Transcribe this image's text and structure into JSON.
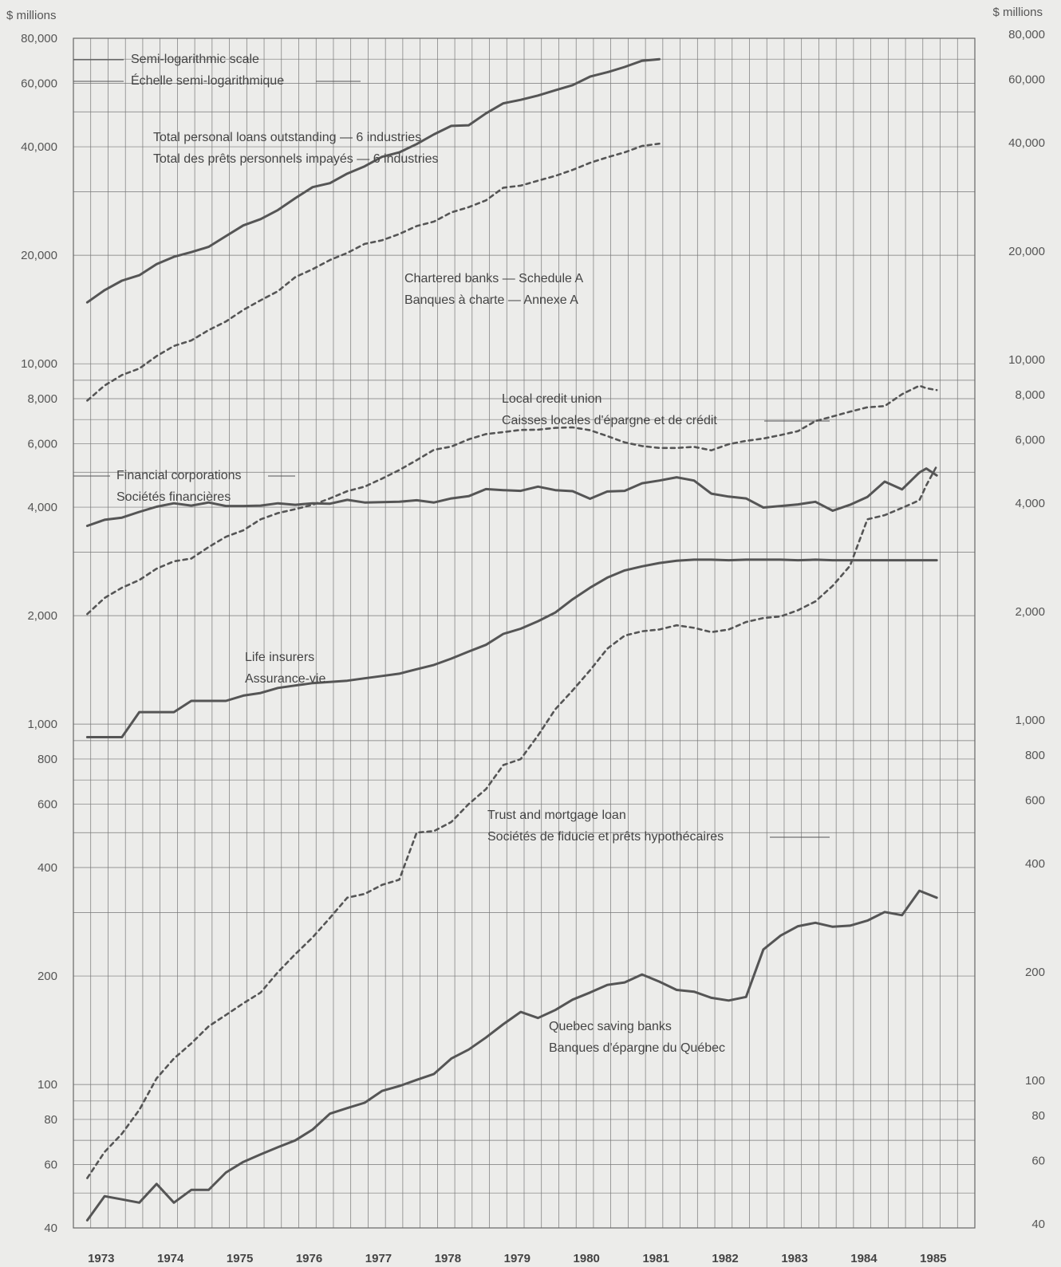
{
  "chart_data": {
    "type": "line",
    "yscale": "log",
    "ylim": [
      40,
      80000
    ],
    "y_unit_left": "$ millions",
    "y_unit_right": "$ millions",
    "y_ticks_left": [
      "80,000",
      "60,000",
      "40,000",
      "20,000",
      "10,000",
      "8,000",
      "6,000",
      "4,000",
      "2,000",
      "1,000",
      "800",
      "600",
      "400",
      "200",
      "100",
      "80",
      "60",
      "40"
    ],
    "y_ticks_right": [
      "80,000",
      "60,000",
      "40,000",
      "20,000",
      "10,000",
      "8,000",
      "6,000",
      "4,000",
      "2,000",
      "1,000",
      "800",
      "600",
      "400",
      "200",
      "100",
      "80",
      "60",
      "40"
    ],
    "categories": [
      "1973",
      "1974",
      "1975",
      "1976",
      "1977",
      "1978",
      "1979",
      "1980",
      "1981",
      "1982",
      "1983",
      "1984",
      "1985"
    ],
    "scale_note": [
      "Semi-logarithmic scale",
      "Échelle semi-logarithmique"
    ],
    "series": [
      {
        "name": "Total personal loans outstanding — 6 industries",
        "name_fr": "Total des prêts personnels impayés — 6 industries",
        "style": "solid",
        "color": "#555555",
        "x": [
          1973.0,
          1973.25,
          1973.5,
          1973.75,
          1974.0,
          1974.25,
          1974.5,
          1974.75,
          1975.0,
          1975.25,
          1975.5,
          1975.75,
          1976.0,
          1976.25,
          1976.5,
          1976.75,
          1977.0,
          1977.25,
          1977.5,
          1977.75,
          1978.0,
          1978.25,
          1978.5,
          1978.75,
          1979.0,
          1979.25,
          1979.5,
          1979.75,
          1980.0,
          1980.25,
          1980.5,
          1980.75,
          1981.0,
          1981.25
        ],
        "y": [
          14800,
          16000,
          17000,
          17600,
          18900,
          19800,
          20400,
          21100,
          22600,
          24200,
          25200,
          26700,
          28800,
          30900,
          31700,
          33700,
          35300,
          37500,
          38600,
          40700,
          43300,
          45700,
          45900,
          49500,
          52800,
          54000,
          55500,
          57400,
          59300,
          62600,
          64400,
          66600,
          69300,
          70000
        ]
      },
      {
        "name": "Chartered banks — Schedule A",
        "name_fr": "Banques à charte — Annexe A",
        "style": "dashed",
        "color": "#555555",
        "x": [
          1973.0,
          1973.25,
          1973.5,
          1973.75,
          1974.0,
          1974.25,
          1974.5,
          1974.75,
          1975.0,
          1975.25,
          1975.5,
          1975.75,
          1976.0,
          1976.25,
          1976.5,
          1976.75,
          1977.0,
          1977.25,
          1977.5,
          1977.75,
          1978.0,
          1978.25,
          1978.5,
          1978.75,
          1979.0,
          1979.25,
          1979.5,
          1979.75,
          1980.0,
          1980.25,
          1980.5,
          1980.75,
          1981.0,
          1981.25
        ],
        "y": [
          7900,
          8700,
          9300,
          9700,
          10500,
          11200,
          11600,
          12400,
          13100,
          14100,
          15000,
          15900,
          17400,
          18300,
          19400,
          20300,
          21500,
          22000,
          22900,
          24100,
          24800,
          26300,
          27200,
          28400,
          30800,
          31200,
          32200,
          33200,
          34500,
          36100,
          37400,
          38600,
          40200,
          40800
        ]
      },
      {
        "name": "Local credit union",
        "name_fr": "Caisses locales d'épargne et de crédit",
        "style": "dashed",
        "color": "#555555",
        "x": [
          1973.0,
          1973.25,
          1973.5,
          1973.75,
          1974.0,
          1974.25,
          1974.5,
          1974.75,
          1975.0,
          1975.25,
          1975.5,
          1975.75,
          1976.0,
          1976.25,
          1976.5,
          1976.75,
          1977.0,
          1977.25,
          1977.5,
          1977.75,
          1978.0,
          1978.25,
          1978.5,
          1978.75,
          1979.0,
          1979.25,
          1979.5,
          1979.75,
          1980.0,
          1980.25,
          1980.5,
          1980.75,
          1981.0,
          1981.25,
          1981.5,
          1981.75,
          1982.0,
          1982.25,
          1982.5,
          1982.75,
          1983.0,
          1983.25,
          1983.5,
          1983.75,
          1984.0,
          1984.25,
          1984.5,
          1984.75,
          1985.0,
          1985.1,
          1985.25
        ],
        "y": [
          2020,
          2240,
          2390,
          2510,
          2700,
          2830,
          2880,
          3100,
          3310,
          3450,
          3700,
          3850,
          3950,
          4060,
          4230,
          4430,
          4560,
          4800,
          5070,
          5400,
          5770,
          5890,
          6170,
          6380,
          6460,
          6550,
          6560,
          6640,
          6660,
          6540,
          6300,
          6050,
          5910,
          5840,
          5840,
          5880,
          5750,
          5980,
          6110,
          6200,
          6340,
          6500,
          6930,
          7140,
          7360,
          7570,
          7630,
          8230,
          8690,
          8550,
          8450
        ]
      },
      {
        "name": "Financial corporations",
        "name_fr": "Sociétés financières",
        "style": "solid",
        "color": "#555555",
        "x": [
          1973.0,
          1973.25,
          1973.5,
          1973.75,
          1974.0,
          1974.25,
          1974.5,
          1974.75,
          1975.0,
          1975.25,
          1975.5,
          1975.75,
          1976.0,
          1976.25,
          1976.5,
          1976.75,
          1977.0,
          1977.25,
          1977.5,
          1977.75,
          1978.0,
          1978.25,
          1978.5,
          1978.75,
          1979.0,
          1979.25,
          1979.5,
          1979.75,
          1980.0,
          1980.25,
          1980.5,
          1980.75,
          1981.0,
          1981.25,
          1981.5,
          1981.75,
          1982.0,
          1982.25,
          1982.5,
          1982.75,
          1983.0,
          1983.25,
          1983.5,
          1983.75,
          1984.0,
          1984.25,
          1984.5,
          1984.75,
          1985.0,
          1985.1,
          1985.25
        ],
        "y": [
          3550,
          3690,
          3740,
          3880,
          4010,
          4100,
          4040,
          4120,
          4030,
          4030,
          4040,
          4100,
          4060,
          4100,
          4090,
          4190,
          4120,
          4130,
          4140,
          4180,
          4120,
          4230,
          4290,
          4490,
          4460,
          4440,
          4560,
          4460,
          4430,
          4220,
          4420,
          4440,
          4660,
          4740,
          4840,
          4740,
          4360,
          4280,
          4230,
          3990,
          4030,
          4070,
          4140,
          3910,
          4060,
          4270,
          4710,
          4480,
          4990,
          5120,
          4900
        ]
      },
      {
        "name": "Life insurers",
        "name_fr": "Assurance-vie",
        "style": "solid",
        "color": "#555555",
        "x": [
          1973.0,
          1973.25,
          1973.5,
          1973.75,
          1974.0,
          1974.25,
          1974.5,
          1974.75,
          1975.0,
          1975.25,
          1975.5,
          1975.75,
          1976.0,
          1976.25,
          1976.5,
          1976.75,
          1977.0,
          1977.25,
          1977.5,
          1977.75,
          1978.0,
          1978.25,
          1978.5,
          1978.75,
          1979.0,
          1979.25,
          1979.5,
          1979.75,
          1980.0,
          1980.25,
          1980.5,
          1980.75,
          1981.0,
          1981.25,
          1981.5,
          1981.75,
          1982.0,
          1982.25,
          1982.5,
          1982.75,
          1983.0,
          1983.25,
          1983.5,
          1983.75,
          1984.0,
          1984.25,
          1984.5,
          1984.75,
          1985.0,
          1985.25
        ],
        "y": [
          920,
          920,
          920,
          1080,
          1080,
          1080,
          1160,
          1160,
          1160,
          1200,
          1220,
          1260,
          1280,
          1300,
          1310,
          1320,
          1340,
          1360,
          1380,
          1420,
          1460,
          1520,
          1590,
          1660,
          1780,
          1840,
          1930,
          2040,
          2220,
          2390,
          2550,
          2670,
          2740,
          2800,
          2840,
          2860,
          2860,
          2850,
          2860,
          2860,
          2860,
          2850,
          2860,
          2850,
          2850,
          2850,
          2850,
          2850,
          2850,
          2850
        ]
      },
      {
        "name": "Trust and mortgage loan",
        "name_fr": "Sociétés de fiducie et prêts hypothécaires",
        "style": "dashed",
        "color": "#555555",
        "x": [
          1973.0,
          1973.25,
          1973.5,
          1973.75,
          1974.0,
          1974.25,
          1974.5,
          1974.75,
          1975.0,
          1975.25,
          1975.5,
          1975.75,
          1976.0,
          1976.25,
          1976.5,
          1976.75,
          1977.0,
          1977.25,
          1977.5,
          1977.75,
          1978.0,
          1978.25,
          1978.5,
          1978.75,
          1979.0,
          1979.25,
          1979.5,
          1979.75,
          1980.0,
          1980.25,
          1980.5,
          1980.75,
          1981.0,
          1981.25,
          1981.5,
          1981.75,
          1982.0,
          1982.25,
          1982.5,
          1982.75,
          1983.0,
          1983.25,
          1983.5,
          1983.75,
          1984.0,
          1984.25,
          1984.5,
          1984.75,
          1985.0,
          1985.1,
          1985.25
        ],
        "y": [
          55,
          65,
          73,
          85,
          104,
          118,
          130,
          145,
          156,
          168,
          180,
          205,
          230,
          256,
          290,
          330,
          338,
          358,
          370,
          500,
          505,
          535,
          600,
          660,
          770,
          800,
          930,
          1100,
          1240,
          1410,
          1620,
          1760,
          1810,
          1830,
          1880,
          1850,
          1800,
          1830,
          1920,
          1970,
          1990,
          2070,
          2190,
          2420,
          2750,
          3700,
          3800,
          3980,
          4180,
          4600,
          5200
        ]
      },
      {
        "name": "Quebec saving banks",
        "name_fr": "Banques d'épargne du Québec",
        "style": "solid",
        "color": "#555555",
        "x": [
          1973.0,
          1973.25,
          1973.5,
          1973.75,
          1974.0,
          1974.25,
          1974.5,
          1974.75,
          1975.0,
          1975.25,
          1975.5,
          1975.75,
          1976.0,
          1976.25,
          1976.5,
          1976.75,
          1977.0,
          1977.25,
          1977.5,
          1977.75,
          1978.0,
          1978.25,
          1978.5,
          1978.75,
          1979.0,
          1979.25,
          1979.5,
          1979.75,
          1980.0,
          1980.25,
          1980.5,
          1980.75,
          1981.0,
          1981.25,
          1981.5,
          1981.75,
          1982.0,
          1982.25,
          1982.5,
          1982.75,
          1983.0,
          1983.25,
          1983.5,
          1983.75,
          1984.0,
          1984.25,
          1984.5,
          1984.75,
          1985.0,
          1985.25
        ],
        "y": [
          42,
          49,
          48,
          47,
          53,
          47,
          51,
          51,
          57,
          61,
          64,
          67,
          70,
          75,
          83,
          86,
          89,
          96,
          99,
          103,
          107,
          118,
          125,
          135,
          147,
          159,
          153,
          161,
          172,
          180,
          189,
          192,
          202,
          193,
          183,
          181,
          174,
          171,
          175,
          237,
          259,
          275,
          281,
          274,
          276,
          285,
          301,
          295,
          345,
          330
        ]
      }
    ]
  }
}
